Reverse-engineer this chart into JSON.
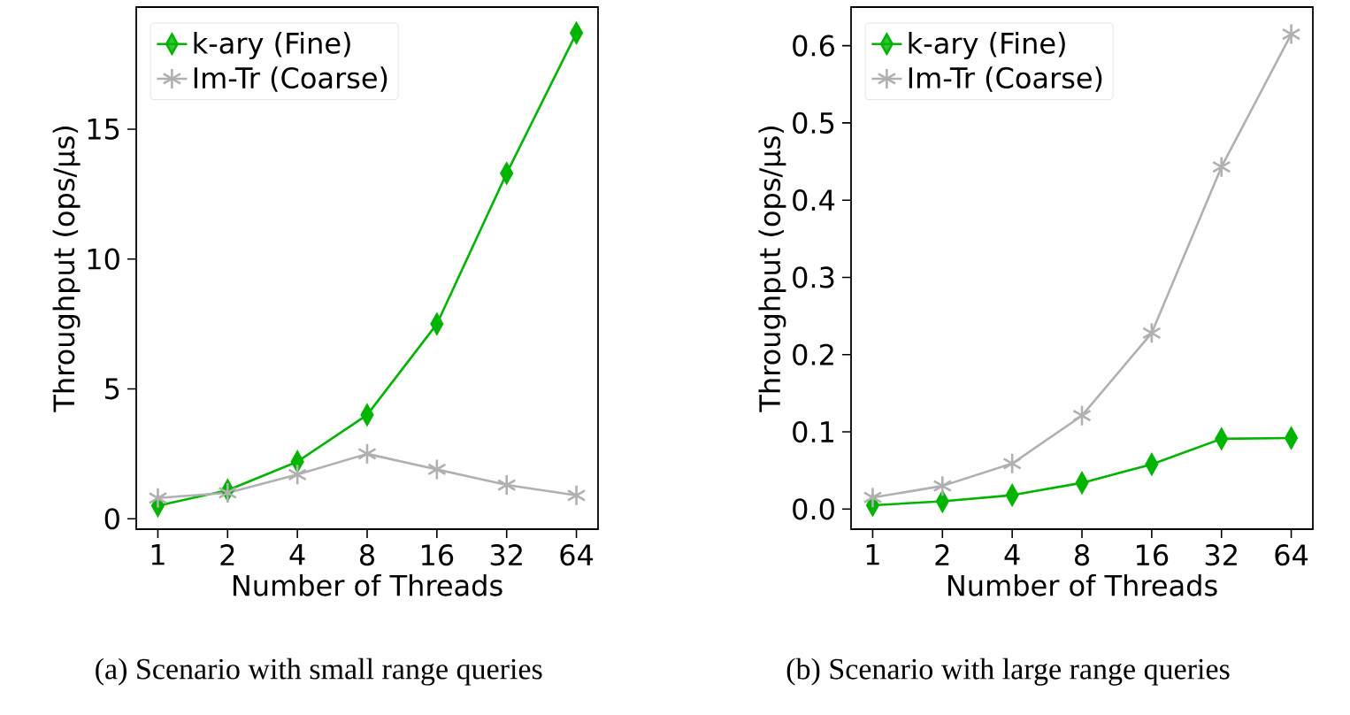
{
  "chart_data": [
    {
      "type": "line",
      "xlabel": "Number of Threads",
      "ylabel": "Throughput (ops/μs)",
      "categories": [
        "1",
        "2",
        "4",
        "8",
        "16",
        "32",
        "64"
      ],
      "ylim": [
        -0.4,
        19.7
      ],
      "yticks": [
        0,
        5,
        10,
        15
      ],
      "legend": "top left",
      "annotations": [
        "(a) Scenario with small range queries"
      ],
      "series": [
        {
          "name": "k-ary (Fine)",
          "color": "#00b400",
          "marker": "diamond",
          "values": [
            0.5,
            1.1,
            2.2,
            4.0,
            7.5,
            13.3,
            18.7
          ]
        },
        {
          "name": "Im-Tr (Coarse)",
          "color": "#b0b0b0",
          "marker": "cross",
          "values": [
            0.8,
            1.0,
            1.7,
            2.5,
            1.9,
            1.3,
            0.9
          ]
        }
      ]
    },
    {
      "type": "line",
      "xlabel": "Number of Threads",
      "ylabel": "Throughput (ops/μs)",
      "categories": [
        "1",
        "2",
        "4",
        "8",
        "16",
        "32",
        "64"
      ],
      "ylim": [
        -0.026,
        0.65
      ],
      "yticks": [
        {
          "value": 0,
          "label": "0.0"
        },
        0.1,
        0.2,
        0.3,
        0.4,
        0.5,
        0.6
      ],
      "legend": "top left",
      "annotations": [
        "(b) Scenario with large range queries"
      ],
      "series": [
        {
          "name": "k-ary (Fine)",
          "color": "#00b400",
          "marker": "diamond",
          "values": [
            0.005,
            0.01,
            0.018,
            0.034,
            0.058,
            0.091,
            0.092
          ]
        },
        {
          "name": "Im-Tr (Coarse)",
          "color": "#b0b0b0",
          "marker": "cross",
          "values": [
            0.015,
            0.03,
            0.059,
            0.121,
            0.228,
            0.443,
            0.615
          ]
        }
      ]
    }
  ]
}
